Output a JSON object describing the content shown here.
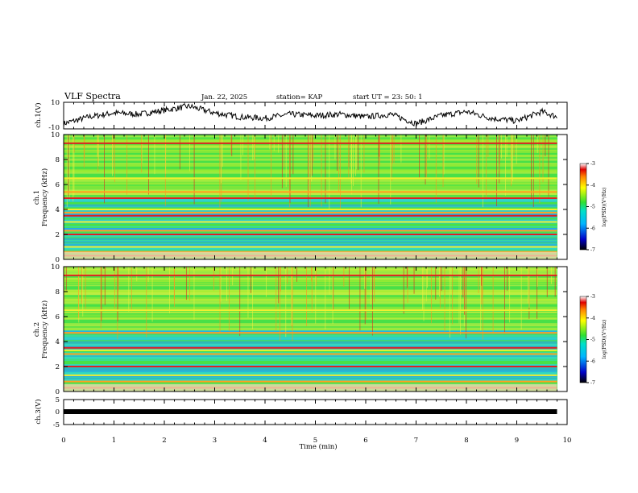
{
  "header": {
    "title": "VLF Spectra",
    "date": "Jan. 22, 2025",
    "station": "station= KAP",
    "start": "start UT =  23: 50: 1"
  },
  "chart_data": [
    {
      "type": "line",
      "panel": "ch1-waveform",
      "ylabel": "ch.1(V)",
      "ylim": [
        -10,
        10
      ],
      "yticks": [
        "10",
        "-10"
      ],
      "xlim": [
        0,
        10
      ],
      "description_series": "envelope",
      "x": [
        0,
        0.5,
        1,
        1.5,
        2,
        2.5,
        3,
        3.5,
        4,
        4.5,
        5,
        5.5,
        6,
        6.5,
        7,
        7.5,
        8,
        8.5,
        9,
        9.5,
        9.8
      ],
      "y": [
        -6,
        -1,
        2,
        1,
        4,
        7,
        2,
        -1,
        -2,
        1,
        0,
        1,
        -1,
        1,
        -6,
        0,
        3,
        -2,
        -4,
        3,
        -1
      ]
    },
    {
      "type": "heatmap",
      "panel": "ch1-spectrogram",
      "ylabel": "ch.1\nFrequency (kHz)",
      "ylim": [
        0,
        10
      ],
      "yticks": [
        "0",
        "2",
        "4",
        "6",
        "8",
        "10"
      ],
      "xlim": [
        0,
        10
      ],
      "bands_khz": [
        0.3,
        0.6,
        1.0,
        2.0,
        2.3,
        3.0,
        3.5,
        3.75,
        4.0,
        4.9,
        5.4,
        6.5,
        9.3
      ],
      "colorbar": {
        "label": "log(PSD)(V²/Hz)",
        "ticks": [
          "-3",
          "-4",
          "-5",
          "-6",
          "-7"
        ],
        "range": [
          -7,
          -3
        ]
      }
    },
    {
      "type": "heatmap",
      "panel": "ch2-spectrogram",
      "ylabel": "ch.2\nFrequency (kHz)",
      "ylim": [
        0,
        10
      ],
      "yticks": [
        "0",
        "2",
        "4",
        "6",
        "8",
        "10"
      ],
      "xlim": [
        0,
        10
      ],
      "bands_khz": [
        0.3,
        0.8,
        1.3,
        2.0,
        3.0,
        3.3,
        3.5,
        4.7,
        6.5,
        9.3
      ],
      "colorbar": {
        "label": "log(PSD)(V²/Hz)",
        "ticks": [
          "-3",
          "-4",
          "-5",
          "-6",
          "-7"
        ],
        "range": [
          -7,
          -3
        ]
      }
    },
    {
      "type": "line",
      "panel": "ch3-waveform",
      "ylabel": "ch.3(V)",
      "ylim": [
        -5,
        5
      ],
      "yticks": [
        "5",
        "0",
        "-5"
      ],
      "xlim": [
        0,
        10
      ],
      "x": [
        0,
        9.8
      ],
      "y": [
        0,
        0
      ]
    }
  ],
  "xaxis": {
    "label": "Time (min)",
    "ticks": [
      "0",
      "1",
      "2",
      "3",
      "4",
      "5",
      "6",
      "7",
      "8",
      "9",
      "10"
    ],
    "range": [
      0,
      10
    ]
  },
  "colors": {
    "axis": "#000000",
    "trace": "#000000"
  }
}
